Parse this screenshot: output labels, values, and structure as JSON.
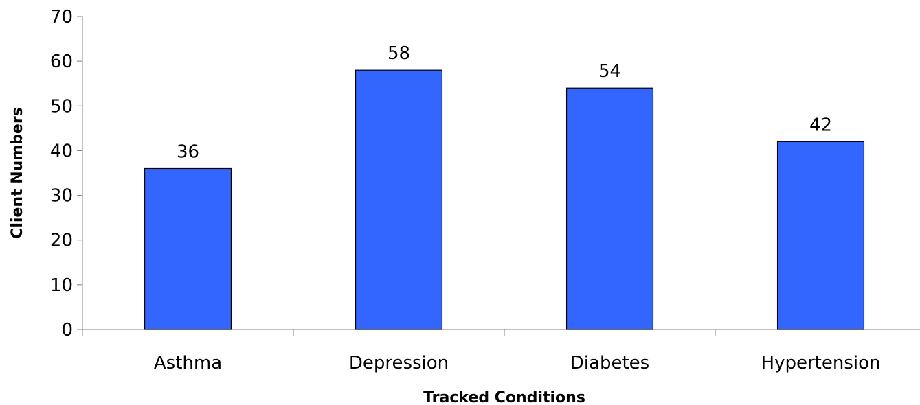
{
  "chart_data": {
    "type": "bar",
    "categories": [
      "Asthma",
      "Depression",
      "Diabetes",
      "Hypertension"
    ],
    "values": [
      36,
      58,
      54,
      42
    ],
    "data_labels": [
      "36",
      "58",
      "54",
      "42"
    ],
    "title": "",
    "xlabel": "Tracked Conditions",
    "ylabel": "Client Numbers",
    "ylim": [
      0,
      70
    ],
    "yticks": [
      "0",
      "10",
      "20",
      "30",
      "40",
      "50",
      "60",
      "70"
    ],
    "grid": false,
    "legend": "none",
    "bar_color": "#3366FF"
  }
}
